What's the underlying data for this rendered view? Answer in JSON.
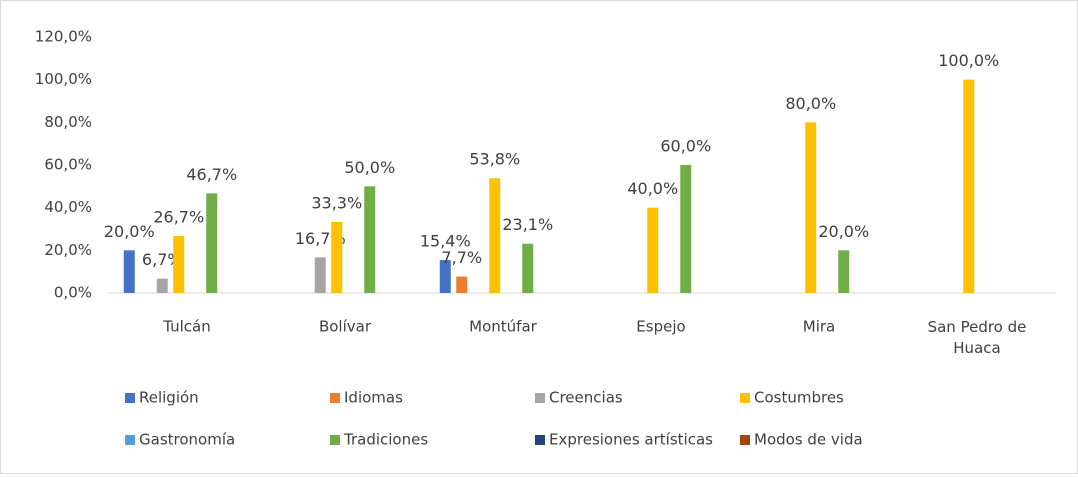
{
  "chart_data": {
    "type": "bar",
    "categories": [
      "Tulcán",
      "Bolívar",
      "Montúfar",
      "Espejo",
      "Mira",
      "San Pedro de Huaca"
    ],
    "series": [
      {
        "name": "Religión",
        "color": "#4472c4",
        "values": [
          20.0,
          null,
          15.4,
          null,
          null,
          null
        ],
        "value_labels": [
          "20,0%",
          null,
          "15,4%",
          null,
          null,
          null
        ]
      },
      {
        "name": "Idiomas",
        "color": "#ed7d31",
        "values": [
          null,
          null,
          7.7,
          null,
          null,
          null
        ],
        "value_labels": [
          null,
          null,
          "7,7%",
          null,
          null,
          null
        ]
      },
      {
        "name": "Creencias",
        "color": "#a5a5a5",
        "values": [
          6.7,
          16.7,
          null,
          null,
          null,
          null
        ],
        "value_labels": [
          "6,7%",
          "16,7%",
          null,
          null,
          null,
          null
        ]
      },
      {
        "name": "Costumbres",
        "color": "#ffc000",
        "values": [
          26.7,
          33.3,
          53.8,
          40.0,
          80.0,
          100.0
        ],
        "value_labels": [
          "26,7%",
          "33,3%",
          "53,8%",
          "40,0%",
          "80,0%",
          "100,0%"
        ]
      },
      {
        "name": "Gastronomía",
        "color": "#5b9bd5",
        "values": [
          null,
          null,
          null,
          null,
          null,
          null
        ]
      },
      {
        "name": "Tradiciones",
        "color": "#70ad47",
        "values": [
          46.7,
          50.0,
          23.1,
          60.0,
          20.0,
          null
        ],
        "value_labels": [
          "46,7%",
          "50,0%",
          "23,1%",
          "60,0%",
          "20,0%",
          null
        ]
      },
      {
        "name": "Expresiones artísticas",
        "color": "#264478",
        "values": [
          null,
          null,
          null,
          null,
          null,
          null
        ]
      },
      {
        "name": "Modos de vida",
        "color": "#9e480e",
        "values": [
          null,
          null,
          null,
          null,
          null,
          null
        ]
      }
    ],
    "ylim": [
      0,
      120
    ],
    "yticks": [
      {
        "value": 0,
        "label": "0,0%"
      },
      {
        "value": 20,
        "label": "20,0%"
      },
      {
        "value": 40,
        "label": "40,0%"
      },
      {
        "value": 60,
        "label": "60,0%"
      },
      {
        "value": 80,
        "label": "80,0%"
      },
      {
        "value": 100,
        "label": "100,0%"
      },
      {
        "value": 120,
        "label": "120,0%"
      }
    ],
    "grid": false
  }
}
